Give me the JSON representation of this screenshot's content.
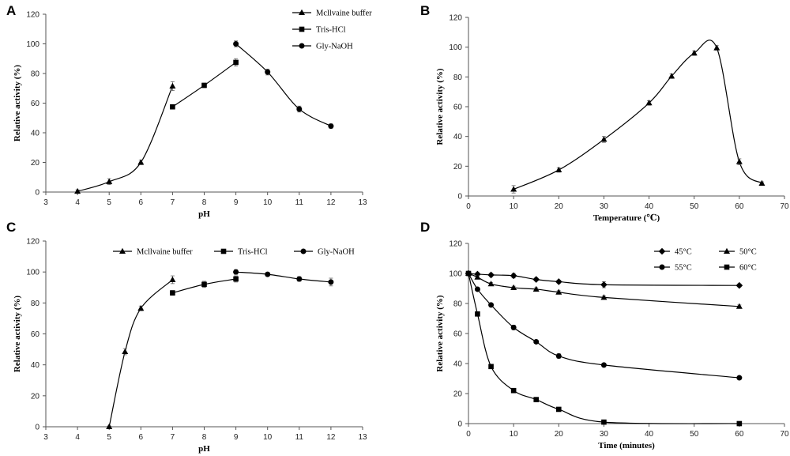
{
  "chart_data": [
    {
      "panel": "A",
      "type": "line",
      "xlabel": "pH",
      "ylabel": "Relative activity (%)",
      "xlim": [
        3,
        13
      ],
      "ylim": [
        0,
        120
      ],
      "xstep": 1,
      "ystep": 20,
      "legend_position": "top-right",
      "series": [
        {
          "name": "Mcllvaine buffer",
          "marker": "triangle",
          "x": [
            4,
            5,
            6,
            7
          ],
          "y": [
            0.5,
            7,
            20,
            71.5
          ],
          "err": [
            1,
            2,
            1.5,
            3
          ]
        },
        {
          "name": "Tris-HCl",
          "marker": "square",
          "x": [
            7,
            8,
            9
          ],
          "y": [
            57.5,
            72,
            87.5
          ],
          "err": [
            0.5,
            1.5,
            2.5
          ]
        },
        {
          "name": "Gly-NaOH",
          "marker": "circle",
          "x": [
            9,
            10,
            11,
            12
          ],
          "y": [
            100,
            81,
            56,
            44.5
          ],
          "err": [
            2,
            2,
            2,
            1.5
          ]
        }
      ]
    },
    {
      "panel": "B",
      "type": "line",
      "xlabel": "Temperature (℃)",
      "ylabel": "Relative activity (%)",
      "xlim": [
        0,
        70
      ],
      "ylim": [
        0,
        120
      ],
      "xstep": 10,
      "ystep": 20,
      "legend_position": "none",
      "series": [
        {
          "name": "",
          "marker": "triangle",
          "x": [
            10,
            20,
            30,
            40,
            45,
            50,
            55,
            60,
            65
          ],
          "y": [
            4.5,
            17.5,
            38,
            62.5,
            80.5,
            96,
            99.5,
            23,
            8.5
          ],
          "err": [
            2.5,
            1.5,
            2,
            1.5,
            1.5,
            1.5,
            1.5,
            2,
            1
          ]
        }
      ]
    },
    {
      "panel": "C",
      "type": "line",
      "xlabel": "pH",
      "ylabel": "Relative activity (%)",
      "xlim": [
        3,
        13
      ],
      "ylim": [
        0,
        120
      ],
      "xstep": 1,
      "ystep": 20,
      "legend_position": "top",
      "series": [
        {
          "name": "Mcllvaine buffer",
          "marker": "triangle",
          "x": [
            5,
            5.5,
            6,
            7
          ],
          "y": [
            0,
            48.5,
            76.5,
            95
          ],
          "err": [
            0.5,
            2,
            1.5,
            2.5
          ]
        },
        {
          "name": "Tris-HCl",
          "marker": "square",
          "x": [
            7,
            8,
            9
          ],
          "y": [
            86.5,
            92,
            95.5
          ],
          "err": [
            1.5,
            2,
            2
          ]
        },
        {
          "name": "Gly-NaOH",
          "marker": "circle",
          "x": [
            9,
            10,
            11,
            12
          ],
          "y": [
            100,
            98.5,
            95.5,
            93.5
          ],
          "err": [
            1.5,
            1,
            1.5,
            2.5
          ]
        }
      ]
    },
    {
      "panel": "D",
      "type": "line",
      "xlabel": "Time (minutes)",
      "ylabel": "Relative activity (%)",
      "xlim": [
        0,
        70
      ],
      "ylim": [
        0,
        120
      ],
      "xstep": 10,
      "ystep": 20,
      "legend_position": "top-right",
      "series": [
        {
          "name": "45°C",
          "marker": "diamond",
          "x": [
            0,
            2,
            5,
            10,
            15,
            20,
            30,
            60
          ],
          "y": [
            100,
            99.5,
            99,
            98.5,
            96,
            94.5,
            92.5,
            92
          ],
          "err": [
            1,
            1,
            1,
            1.5,
            1,
            1,
            2,
            1
          ]
        },
        {
          "name": "50°C",
          "marker": "triangle",
          "x": [
            0,
            2,
            5,
            10,
            15,
            20,
            30,
            60
          ],
          "y": [
            100,
            97.5,
            93,
            90.5,
            89.5,
            87.5,
            84,
            78
          ],
          "err": [
            1,
            1,
            1,
            1,
            1,
            1,
            1,
            1
          ]
        },
        {
          "name": "55°C",
          "marker": "circle",
          "x": [
            0,
            2,
            5,
            10,
            15,
            20,
            30,
            60
          ],
          "y": [
            100,
            89.5,
            79,
            64,
            54.5,
            45,
            39,
            30.5
          ],
          "err": [
            1,
            1,
            1,
            1.5,
            1,
            1.5,
            1,
            1
          ]
        },
        {
          "name": "60°C",
          "marker": "square",
          "x": [
            0,
            2,
            5,
            10,
            15,
            20,
            30,
            60
          ],
          "y": [
            100,
            73,
            38,
            22,
            16,
            9.5,
            1,
            0
          ],
          "err": [
            1,
            1,
            1,
            1,
            1,
            1,
            1,
            0.5
          ]
        }
      ]
    }
  ]
}
